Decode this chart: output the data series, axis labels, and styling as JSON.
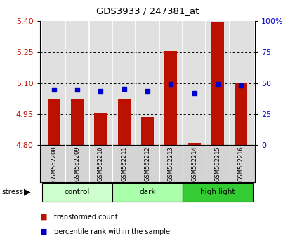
{
  "title": "GDS3933 / 247381_at",
  "samples": [
    "GSM562208",
    "GSM562209",
    "GSM562210",
    "GSM562211",
    "GSM562212",
    "GSM562213",
    "GSM562214",
    "GSM562215",
    "GSM562216"
  ],
  "red_values": [
    5.025,
    5.025,
    4.955,
    5.025,
    4.935,
    5.255,
    4.81,
    5.395,
    5.1
  ],
  "blue_values": [
    5.068,
    5.068,
    5.06,
    5.07,
    5.063,
    5.095,
    5.05,
    5.095,
    5.09
  ],
  "groups": [
    {
      "label": "control",
      "indices": [
        0,
        1,
        2
      ],
      "color": "#ccffcc"
    },
    {
      "label": "dark",
      "indices": [
        3,
        4,
        5
      ],
      "color": "#aaffaa"
    },
    {
      "label": "high light",
      "indices": [
        6,
        7,
        8
      ],
      "color": "#33cc33"
    }
  ],
  "ylim": [
    4.8,
    5.4
  ],
  "yticks": [
    4.8,
    4.95,
    5.1,
    5.25,
    5.4
  ],
  "right_ylim": [
    0,
    100
  ],
  "right_yticks": [
    0,
    25,
    50,
    75,
    100
  ],
  "bar_bottom": 4.8,
  "bar_width": 0.55,
  "red_color": "#bb1100",
  "blue_color": "#0000cc",
  "col_bg": "#e0e0e0",
  "stress_label": "stress",
  "legend_red": "transformed count",
  "legend_blue": "percentile rank within the sample"
}
